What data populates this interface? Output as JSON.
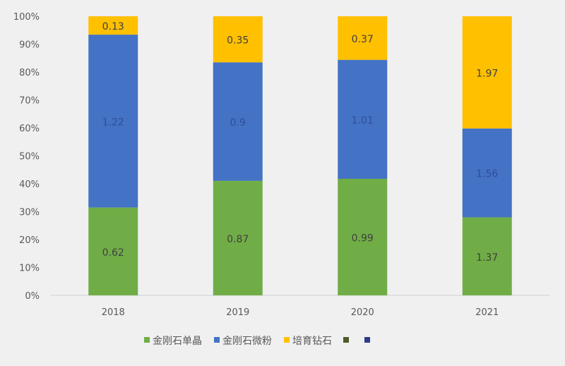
{
  "chart_data": {
    "type": "bar",
    "stacked": "percent",
    "categories": [
      "2018",
      "2019",
      "2020",
      "2021"
    ],
    "series": [
      {
        "name": "金刚石单晶",
        "color": "#70ad47",
        "values": [
          0.62,
          0.87,
          0.99,
          1.37
        ]
      },
      {
        "name": "金刚石微粉",
        "color": "#4472c4",
        "values": [
          1.22,
          0.9,
          1.01,
          1.56
        ]
      },
      {
        "name": "培育钻石",
        "color": "#ffc000",
        "values": [
          0.13,
          0.35,
          0.37,
          1.97
        ]
      }
    ],
    "extra_legend_colors": [
      "#4e5a2a",
      "#2e3a8c"
    ],
    "yticks": [
      "0%",
      "10%",
      "20%",
      "30%",
      "40%",
      "50%",
      "60%",
      "70%",
      "80%",
      "90%",
      "100%"
    ],
    "ylim": [
      0,
      100
    ],
    "grid": false,
    "legend": "bottom"
  }
}
